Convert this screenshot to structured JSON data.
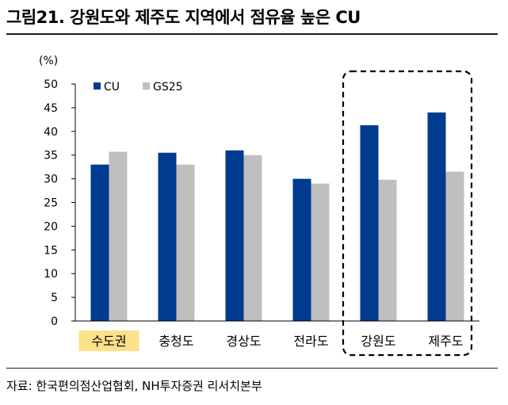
{
  "figure": {
    "title": "그림21. 강원도와 제주도 지역에서 점유율 높은 CU",
    "source": "자료: 한국편의점산업협회, NH투자증권 리서치본부"
  },
  "chart_data": {
    "type": "bar",
    "title": "",
    "ylabel": "(%)",
    "xlabel": "",
    "ylim": [
      0,
      50
    ],
    "yticks": [
      "0",
      "5",
      "10",
      "15",
      "20",
      "25",
      "30",
      "35",
      "40",
      "45",
      "50"
    ],
    "categories": [
      "수도권",
      "충청도",
      "경상도",
      "전라도",
      "강원도",
      "제주도"
    ],
    "highlighted_category": "수도권",
    "highlight_color": "#fce18b",
    "boxed_categories": [
      "강원도",
      "제주도"
    ],
    "series": [
      {
        "name": "CU",
        "color": "#003b8f",
        "values": [
          33,
          35.5,
          36,
          30,
          41.3,
          44
        ]
      },
      {
        "name": "GS25",
        "color": "#bfbfbf",
        "values": [
          35.7,
          33,
          35,
          29,
          29.8,
          31.5
        ]
      }
    ],
    "grid": false,
    "legend_position": "top-left"
  }
}
